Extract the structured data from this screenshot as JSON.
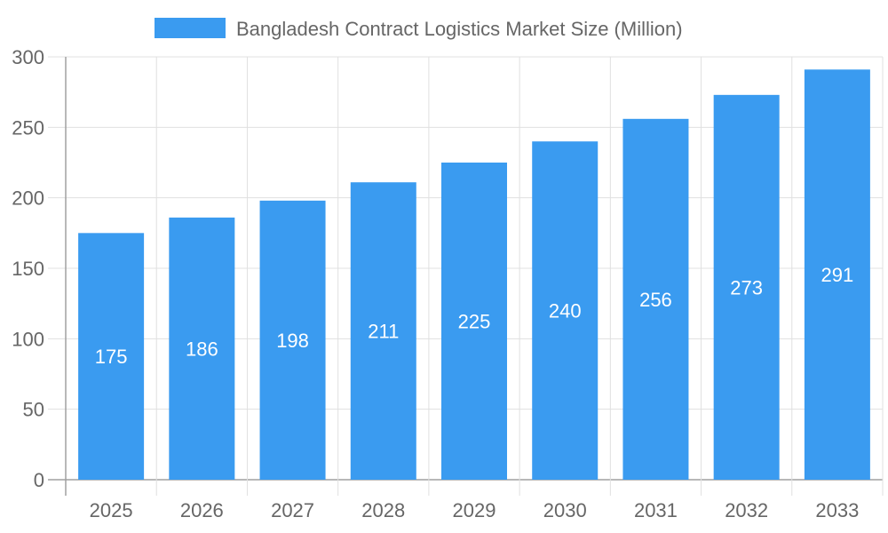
{
  "chart_data": {
    "type": "bar",
    "categories": [
      "2025",
      "2026",
      "2027",
      "2028",
      "2029",
      "2030",
      "2031",
      "2032",
      "2033"
    ],
    "series": [
      {
        "name": "Bangladesh Contract Logistics Market Size (Million)",
        "values": [
          175,
          186,
          198,
          211,
          225,
          240,
          256,
          273,
          291
        ]
      }
    ],
    "ylim": [
      0,
      300
    ],
    "yticks": [
      0,
      50,
      100,
      150,
      200,
      250,
      300
    ],
    "grid": true,
    "legend": "top-center",
    "data_labels": true,
    "colors": {
      "bar": "#3a9bf0",
      "grid": "#e0e0e0",
      "axis": "#a0a0a0",
      "text": "#666666",
      "label": "#ffffff"
    }
  }
}
